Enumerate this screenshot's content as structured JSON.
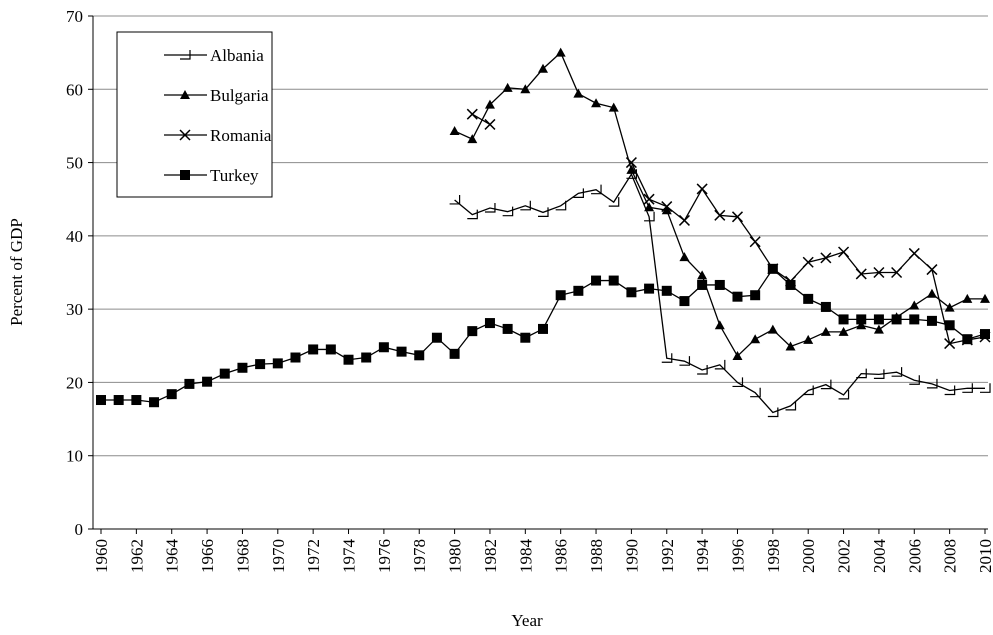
{
  "chart_data": {
    "type": "line",
    "x_label": "Year",
    "y_label": "Percent of GDP",
    "x": [
      1960,
      1961,
      1962,
      1963,
      1964,
      1965,
      1966,
      1967,
      1968,
      1969,
      1970,
      1971,
      1972,
      1973,
      1974,
      1975,
      1976,
      1977,
      1978,
      1979,
      1980,
      1981,
      1982,
      1983,
      1984,
      1985,
      1986,
      1987,
      1988,
      1989,
      1990,
      1991,
      1992,
      1993,
      1994,
      1995,
      1996,
      1997,
      1998,
      1999,
      2000,
      2001,
      2002,
      2003,
      2004,
      2005,
      2006,
      2007,
      2008,
      2009,
      2010
    ],
    "series": [
      {
        "name": "Albania",
        "color": "#000000",
        "marker": "half-triangle",
        "values": [
          null,
          null,
          null,
          null,
          null,
          null,
          null,
          null,
          null,
          null,
          null,
          null,
          null,
          null,
          null,
          null,
          null,
          null,
          null,
          null,
          44.9,
          42.9,
          43.8,
          43.3,
          44.1,
          43.2,
          44.1,
          45.8,
          46.3,
          44.6,
          48.4,
          42.6,
          23.3,
          22.9,
          21.7,
          22.4,
          20.0,
          18.6,
          15.9,
          16.8,
          18.9,
          19.7,
          18.3,
          21.2,
          21.1,
          21.4,
          20.3,
          19.8,
          18.9,
          19.2,
          19.2
        ]
      },
      {
        "name": "Bulgaria",
        "color": "#000000",
        "marker": "triangle",
        "values": [
          null,
          null,
          null,
          null,
          null,
          null,
          null,
          null,
          null,
          null,
          null,
          null,
          null,
          null,
          null,
          null,
          null,
          null,
          null,
          null,
          54.3,
          53.2,
          57.9,
          60.2,
          60.0,
          62.8,
          65.0,
          59.4,
          58.1,
          57.5,
          49.0,
          43.9,
          43.5,
          37.1,
          34.6,
          27.8,
          23.6,
          25.9,
          27.2,
          24.9,
          25.8,
          26.9,
          26.9,
          27.8,
          27.2,
          28.9,
          30.5,
          32.1,
          30.2,
          31.4,
          31.4
        ]
      },
      {
        "name": "Romania",
        "color": "#000000",
        "marker": "cross",
        "values": [
          null,
          null,
          null,
          null,
          null,
          null,
          null,
          null,
          null,
          null,
          null,
          null,
          null,
          null,
          null,
          null,
          null,
          null,
          null,
          null,
          null,
          56.6,
          55.2,
          null,
          null,
          null,
          null,
          null,
          null,
          null,
          50.0,
          45.0,
          44.0,
          42.1,
          46.4,
          42.8,
          42.6,
          39.2,
          35.5,
          33.8,
          36.4,
          37.0,
          37.8,
          34.8,
          35.0,
          35.0,
          37.6,
          35.4,
          25.3,
          25.8,
          26.2
        ]
      },
      {
        "name": "Turkey",
        "color": "#000000",
        "marker": "square",
        "values": [
          17.6,
          17.6,
          17.6,
          17.3,
          18.4,
          19.8,
          20.1,
          21.2,
          22.0,
          22.5,
          22.6,
          23.4,
          24.5,
          24.5,
          23.1,
          23.4,
          24.8,
          24.2,
          23.7,
          26.1,
          23.9,
          27.0,
          28.1,
          27.3,
          26.1,
          27.3,
          31.9,
          32.5,
          33.9,
          33.9,
          32.3,
          32.8,
          32.5,
          31.1,
          33.3,
          33.3,
          31.7,
          31.9,
          35.5,
          33.3,
          31.4,
          30.3,
          28.6,
          28.6,
          28.6,
          28.6,
          28.6,
          28.4,
          27.8,
          25.9,
          26.6
        ]
      }
    ],
    "xlim": [
      1960,
      2010
    ],
    "xticks": [
      1960,
      1962,
      1964,
      1966,
      1968,
      1970,
      1972,
      1974,
      1976,
      1978,
      1980,
      1982,
      1984,
      1986,
      1988,
      1990,
      1992,
      1994,
      1996,
      1998,
      2000,
      2002,
      2004,
      2006,
      2008,
      2010
    ],
    "ylim": [
      0,
      70
    ],
    "yticks": [
      0,
      10,
      20,
      30,
      40,
      50,
      60,
      70
    ],
    "grid": true,
    "legend": "upper-left"
  }
}
